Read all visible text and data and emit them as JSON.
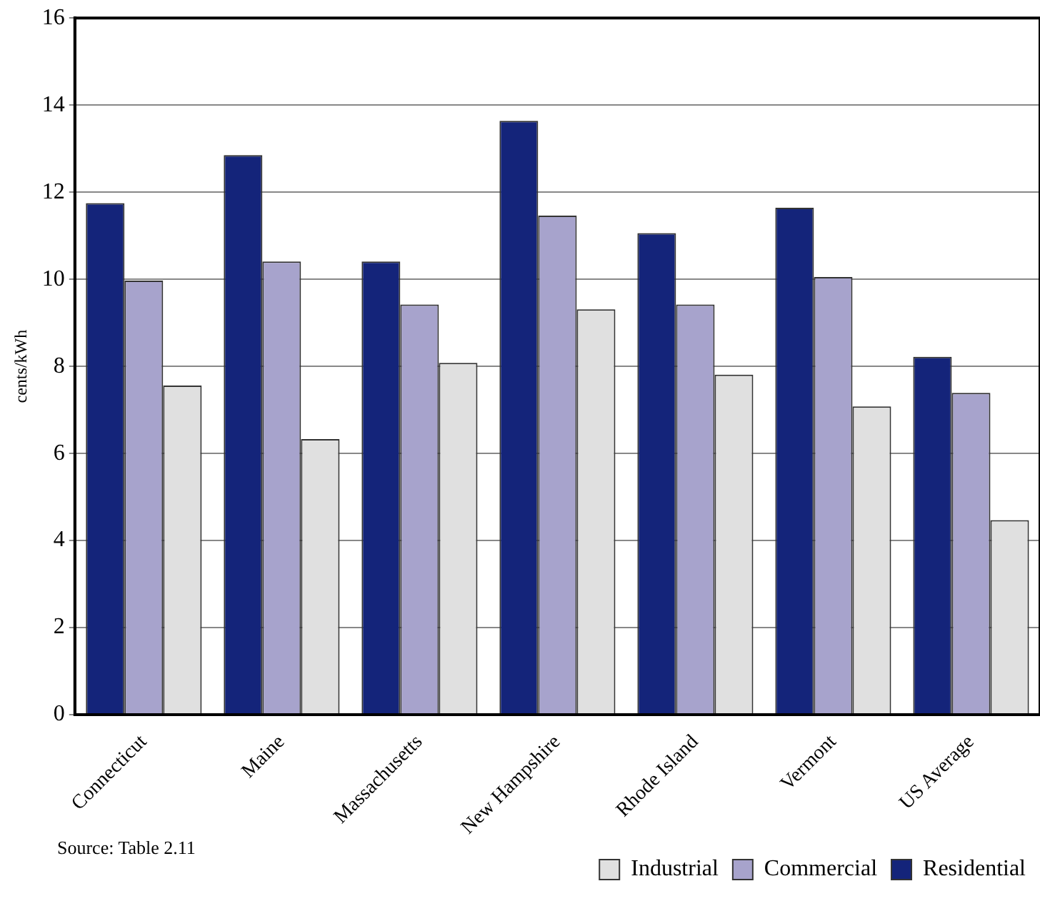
{
  "chart_data": {
    "type": "bar",
    "ylabel": "cents/kWh",
    "categories": [
      "Connecticut",
      "Maine",
      "Massachusetts",
      "New Hampshire",
      "Rhode Island",
      "Vermont",
      "US Average"
    ],
    "series": [
      {
        "name": "Residential",
        "color": "#14247a",
        "values": [
          11.75,
          12.85,
          10.41,
          13.64,
          11.06,
          11.64,
          8.22
        ]
      },
      {
        "name": "Commercial",
        "color": "#a7a3cc",
        "values": [
          9.97,
          10.41,
          9.42,
          11.46,
          9.42,
          10.05,
          7.39
        ]
      },
      {
        "name": "Industrial",
        "color": "#e0e0e0",
        "values": [
          7.56,
          6.33,
          8.08,
          9.31,
          7.81,
          7.08,
          4.47
        ]
      }
    ],
    "ylim": [
      0,
      16
    ],
    "yticks": [
      0,
      2,
      4,
      6,
      8,
      10,
      12,
      14,
      16
    ],
    "grid": "y",
    "legend": "bottom right",
    "annotations": [
      "Source: Table 2.11"
    ]
  }
}
